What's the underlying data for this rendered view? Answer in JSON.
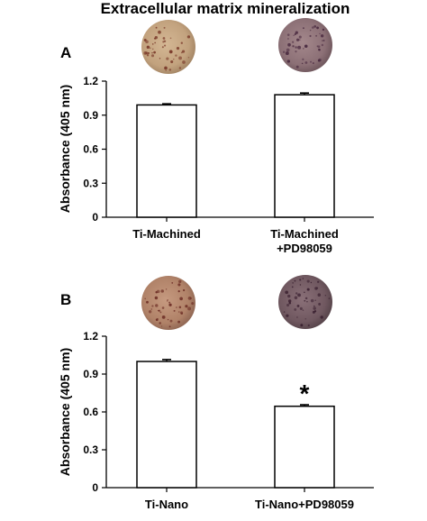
{
  "figure_title": "Extracellular matrix mineralization",
  "colors": {
    "bar_fill": "#ffffff",
    "bar_stroke": "#000000",
    "axis": "#000000",
    "dish_a1": "#c2a27e",
    "dish_a2": "#8c7076",
    "dish_b1": "#b08268",
    "dish_b2": "#705860"
  },
  "chart_data": [
    {
      "type": "bar",
      "panel": "A",
      "title": "",
      "ylabel": "Absorbance (405 nm)",
      "xlabel": "",
      "ylim": [
        0,
        1.2
      ],
      "yticks": [
        "0",
        "0.3",
        "0.6",
        "0.9",
        "1.2"
      ],
      "yticks_values": [
        0,
        0.3,
        0.6,
        0.9,
        1.2
      ],
      "categories": [
        [
          "Ti-Machined"
        ],
        [
          "Ti-Machined",
          "+PD98059"
        ]
      ],
      "values": [
        0.99,
        1.08
      ],
      "errors": [
        0.01,
        0.015
      ],
      "annotations": [
        "",
        ""
      ],
      "grid": false
    },
    {
      "type": "bar",
      "panel": "B",
      "title": "",
      "ylabel": "Absorbance (405 nm)",
      "xlabel": "",
      "ylim": [
        0,
        1.2
      ],
      "yticks": [
        "0",
        "0.3",
        "0.6",
        "0.9",
        "1.2"
      ],
      "yticks_values": [
        0,
        0.3,
        0.6,
        0.9,
        1.2
      ],
      "categories": [
        [
          "Ti-Nano"
        ],
        [
          "Ti-Nano+PD98059"
        ]
      ],
      "values": [
        1.0,
        0.645
      ],
      "errors": [
        0.015,
        0.012
      ],
      "annotations": [
        "",
        "*"
      ],
      "grid": false
    }
  ]
}
